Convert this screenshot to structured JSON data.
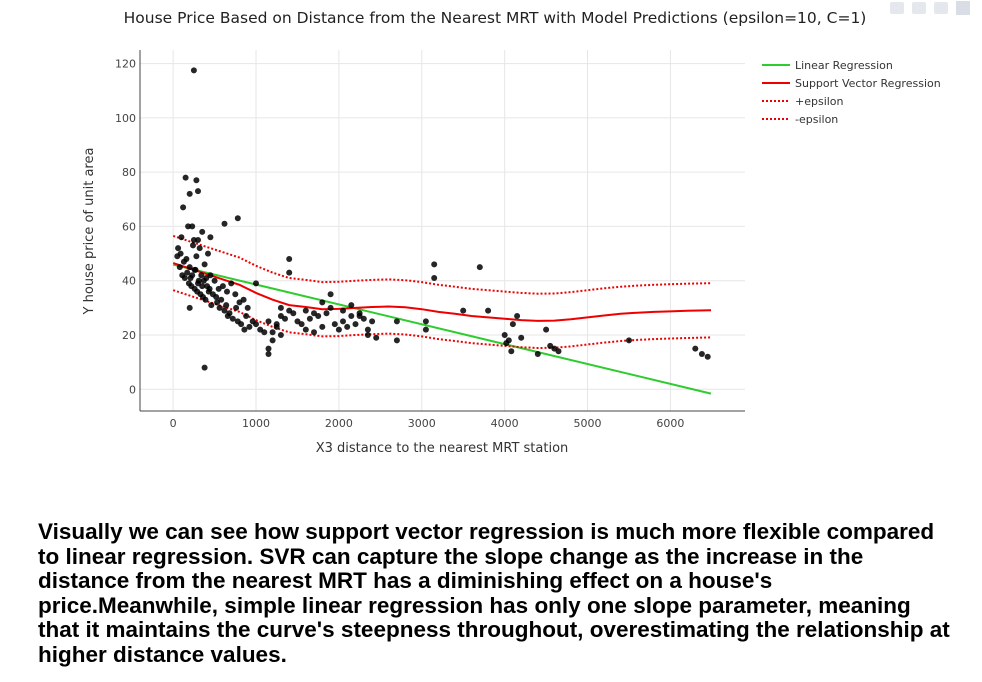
{
  "chart_data": {
    "type": "scatter",
    "title": "House Price Based on Distance from the Nearest MRT with Model Predictions (epsilon=10, C=1)",
    "xlabel": "X3 distance to the nearest MRT station",
    "ylabel": "Y house price of unit area",
    "xlim": [
      -400,
      6900
    ],
    "ylim": [
      -8,
      125
    ],
    "xticks": [
      0,
      1000,
      2000,
      3000,
      4000,
      5000,
      6000
    ],
    "yticks": [
      0,
      20,
      40,
      60,
      80,
      100,
      120
    ],
    "grid": true,
    "legend_position": "top-right",
    "series": [
      {
        "name": "Linear Regression",
        "kind": "line",
        "color": "#2ecc2e",
        "dash": "solid",
        "x": [
          0,
          6490
        ],
        "y": [
          45.9,
          -1.6
        ]
      },
      {
        "name": "Support Vector Regression",
        "kind": "line",
        "color": "#ee0000",
        "dash": "solid",
        "x": [
          0,
          200,
          400,
          600,
          800,
          1000,
          1200,
          1400,
          1600,
          1800,
          2000,
          2200,
          2400,
          2600,
          2800,
          3000,
          3200,
          3400,
          3600,
          3800,
          4000,
          4200,
          4400,
          4600,
          4800,
          5000,
          5200,
          5400,
          5600,
          5800,
          6000,
          6200,
          6490
        ],
        "y": [
          46.5,
          44.5,
          42.5,
          40.5,
          38.5,
          35.5,
          33,
          31,
          30.3,
          29.5,
          29.6,
          30,
          30.3,
          30.5,
          30.2,
          29.5,
          28.5,
          27.8,
          27,
          26.5,
          26,
          25.5,
          25.2,
          25.3,
          25.8,
          26.5,
          27.2,
          27.8,
          28.2,
          28.5,
          28.7,
          28.9,
          29.1
        ]
      },
      {
        "name": "+epsilon",
        "kind": "line",
        "color": "#ee0000",
        "dash": "dot",
        "x": [
          0,
          200,
          400,
          600,
          800,
          1000,
          1200,
          1400,
          1600,
          1800,
          2000,
          2200,
          2400,
          2600,
          2800,
          3000,
          3200,
          3400,
          3600,
          3800,
          4000,
          4200,
          4400,
          4600,
          4800,
          5000,
          5200,
          5400,
          5600,
          5800,
          6000,
          6200,
          6490
        ],
        "y": [
          56.5,
          54.5,
          52.5,
          50.5,
          48.5,
          45.5,
          43,
          41,
          40.3,
          39.5,
          39.6,
          40,
          40.3,
          40.5,
          40.2,
          39.5,
          38.5,
          37.8,
          37,
          36.5,
          36,
          35.5,
          35.2,
          35.3,
          35.8,
          36.5,
          37.2,
          37.8,
          38.2,
          38.5,
          38.7,
          38.9,
          39.1
        ]
      },
      {
        "name": "-epsilon",
        "kind": "line",
        "color": "#ee0000",
        "dash": "dot",
        "x": [
          0,
          200,
          400,
          600,
          800,
          1000,
          1200,
          1400,
          1600,
          1800,
          2000,
          2200,
          2400,
          2600,
          2800,
          3000,
          3200,
          3400,
          3600,
          3800,
          4000,
          4200,
          4400,
          4600,
          4800,
          5000,
          5200,
          5400,
          5600,
          5800,
          6000,
          6200,
          6490
        ],
        "y": [
          36.5,
          34.5,
          32.5,
          30.5,
          28.5,
          25.5,
          23,
          21,
          20.3,
          19.5,
          19.6,
          20,
          20.3,
          20.5,
          20.2,
          19.5,
          18.5,
          17.8,
          17,
          16.5,
          16,
          15.5,
          15.2,
          15.3,
          15.8,
          16.5,
          17.2,
          17.8,
          18.2,
          18.5,
          18.7,
          18.9,
          19.1
        ]
      },
      {
        "kind": "markers",
        "color": "#000000",
        "x": [
          250,
          150,
          300,
          280,
          200,
          120,
          180,
          250,
          350,
          420,
          380,
          320,
          280,
          240,
          100,
          90,
          160,
          200,
          230,
          260,
          310,
          350,
          400,
          450,
          500,
          550,
          600,
          650,
          700,
          750,
          800,
          850,
          900,
          50,
          60,
          80,
          110,
          130,
          140,
          170,
          190,
          210,
          220,
          260,
          270,
          290,
          300,
          330,
          340,
          360,
          370,
          390,
          410,
          430,
          440,
          460,
          480,
          520,
          530,
          560,
          580,
          620,
          640,
          660,
          680,
          720,
          760,
          780,
          820,
          860,
          880,
          920,
          960,
          1000,
          1050,
          1100,
          1150,
          1200,
          1250,
          1300,
          1350,
          1400,
          1450,
          1500,
          1550,
          1600,
          1650,
          1700,
          1750,
          1800,
          1850,
          1900,
          1950,
          2000,
          2050,
          2100,
          2150,
          2200,
          2250,
          2300,
          2350,
          2400,
          1150,
          1150,
          1400,
          1400,
          1300,
          1200,
          2700,
          2700,
          3050,
          3050,
          3150,
          3150,
          3500,
          3700,
          3800,
          4000,
          4020,
          4050,
          4080,
          4100,
          4150,
          4200,
          4400,
          4500,
          4550,
          4600,
          4650,
          5500,
          6300,
          6380,
          6450,
          1250,
          1300,
          1700,
          1800,
          1900,
          2050,
          2150,
          2250,
          2350,
          2450,
          380,
          620,
          780,
          1000,
          1600,
          450,
          200,
          230,
          300
        ],
        "y": [
          117.5,
          78,
          73,
          77,
          72,
          67,
          60,
          55,
          58,
          50,
          46,
          52,
          49,
          53,
          56,
          50,
          48,
          45,
          42,
          44,
          40,
          38,
          41,
          42,
          40,
          37,
          38,
          36,
          39,
          35,
          32,
          33,
          30,
          49,
          52,
          45,
          42,
          47,
          41,
          43,
          39,
          41,
          38,
          37,
          44,
          36,
          39,
          35,
          42,
          34,
          40,
          33,
          38,
          36,
          37,
          31,
          35,
          34,
          32,
          30,
          33,
          29,
          31,
          27,
          28,
          26,
          30,
          25,
          24,
          22,
          27,
          23,
          25,
          24,
          22,
          21,
          25,
          18,
          23,
          27,
          26,
          29,
          28,
          25,
          24,
          22,
          26,
          21,
          27,
          23,
          28,
          30,
          24,
          22,
          25,
          23,
          27,
          24,
          28,
          26,
          22,
          25,
          13,
          15,
          43,
          48,
          20,
          21,
          25,
          18,
          22,
          25,
          41,
          46,
          29,
          45,
          29,
          20,
          17,
          18,
          14,
          24,
          27,
          19,
          13,
          22,
          16,
          15,
          14,
          18,
          15,
          13,
          12,
          24,
          30,
          28,
          32,
          35,
          29,
          31,
          27,
          20,
          19,
          8,
          61,
          63,
          39,
          29,
          56,
          30,
          60,
          55
        ]
      }
    ]
  },
  "caption": "Visually we can see how support vector regression is much more flexible compared to linear regression. SVR can capture the slope change as the increase in the distance from the nearest MRT has a diminishing effect on a house's price.Meanwhile, simple linear regression has only one slope parameter, meaning that it maintains the curve's steepness throughout, overestimating the relationship at higher distance values."
}
